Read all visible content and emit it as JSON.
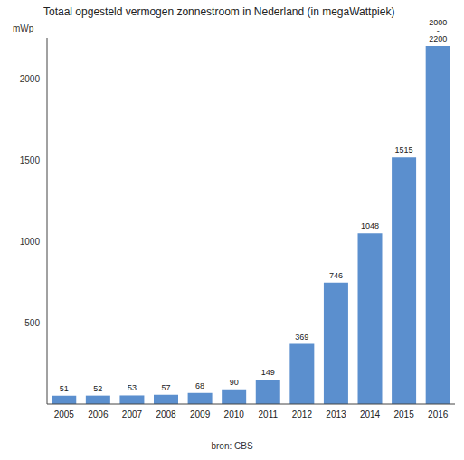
{
  "chart_data": {
    "type": "bar",
    "title": "Totaal opgesteld vermogen zonnestroom in Nederland (in megaWattpiek)",
    "y_label": "mWp",
    "source": "bron: CBS",
    "categories": [
      "2005",
      "2006",
      "2007",
      "2008",
      "2009",
      "2010",
      "2011",
      "2012",
      "2013",
      "2014",
      "2015",
      "2016"
    ],
    "values": [
      51,
      52,
      53,
      57,
      68,
      90,
      149,
      369,
      746,
      1048,
      1515,
      2200
    ],
    "value_labels": [
      "51",
      "52",
      "53",
      "57",
      "68",
      "90",
      "149",
      "369",
      "746",
      "1048",
      "1515",
      "2000 - 2200"
    ],
    "color": "#5b8fce",
    "ylim": [
      0,
      2250
    ],
    "yticks": [
      500,
      1000,
      1500,
      2000
    ],
    "grid": false,
    "data_labels": true
  }
}
